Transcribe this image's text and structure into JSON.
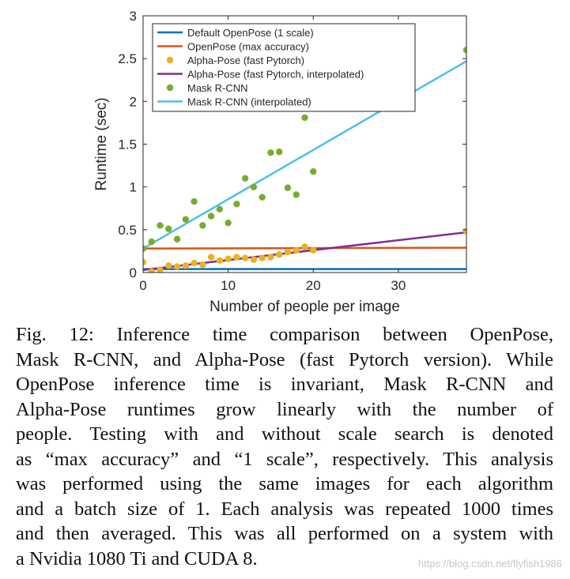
{
  "chart_data": {
    "type": "line",
    "title": "",
    "xlabel": "Number of people per image",
    "ylabel": "Runtime (sec)",
    "xlim": [
      0,
      38
    ],
    "ylim": [
      0,
      3
    ],
    "xticks": [
      0,
      10,
      20,
      30
    ],
    "yticks": [
      0,
      0.5,
      1,
      1.5,
      2,
      2.5,
      3
    ],
    "ytick_labels": [
      "0",
      "0.5",
      "1",
      "1.5",
      "2",
      "2.5",
      "3"
    ],
    "legend_position": "top",
    "series": [
      {
        "name": "Default OpenPose (1 scale)",
        "kind": "line",
        "color": "#0072bd",
        "x": [
          0,
          38
        ],
        "y": [
          0.04,
          0.04
        ]
      },
      {
        "name": "OpenPose (max accuracy)",
        "kind": "line",
        "color": "#d95319",
        "x": [
          0,
          38
        ],
        "y": [
          0.28,
          0.29
        ]
      },
      {
        "name": "Alpha-Pose (fast Pytorch)",
        "kind": "scatter",
        "color": "#edb120",
        "x": [
          0,
          1,
          2,
          3,
          4,
          5,
          6,
          7,
          8,
          9,
          10,
          11,
          12,
          13,
          14,
          15,
          16,
          17,
          18,
          19,
          20,
          38
        ],
        "y": [
          0.12,
          0.01,
          0.03,
          0.08,
          0.07,
          0.08,
          0.11,
          0.09,
          0.18,
          0.14,
          0.16,
          0.18,
          0.17,
          0.15,
          0.17,
          0.18,
          0.21,
          0.24,
          0.26,
          0.3,
          0.26,
          0.48
        ]
      },
      {
        "name": "Alpha-Pose (fast Pytorch, interpolated)",
        "kind": "line",
        "color": "#7e2f8e",
        "x": [
          0,
          38
        ],
        "y": [
          0.03,
          0.47
        ]
      },
      {
        "name": "Mask R-CNN",
        "kind": "scatter",
        "color": "#77ac30",
        "x": [
          0,
          1,
          2,
          3,
          4,
          5,
          6,
          7,
          8,
          9,
          10,
          11,
          12,
          13,
          14,
          15,
          16,
          17,
          18,
          19,
          20,
          38
        ],
        "y": [
          0.28,
          0.36,
          0.55,
          0.51,
          0.39,
          0.62,
          0.83,
          0.55,
          0.66,
          0.74,
          0.58,
          0.8,
          1.1,
          1.0,
          0.88,
          1.4,
          1.41,
          0.99,
          0.91,
          1.81,
          1.18,
          2.6
        ]
      },
      {
        "name": "Mask R-CNN (interpolated)",
        "kind": "line",
        "color": "#4dbeee",
        "x": [
          0,
          38
        ],
        "y": [
          0.28,
          2.47
        ]
      }
    ]
  },
  "caption": {
    "lines": [
      "Fig. 12: Inference time comparison between OpenPose,",
      "Mask R-CNN, and Alpha-Pose (fast Pytorch version). While",
      "OpenPose inference time is invariant, Mask R-CNN and",
      "Alpha-Pose runtimes grow linearly with the number of",
      "people. Testing with and without scale search is denoted",
      "as “max accuracy” and “1 scale”, respectively. This analysis",
      "was performed using the same images for each algorithm",
      "and a batch size of 1. Each analysis was repeated 1000 times",
      "and then averaged. This was all performed on a system with",
      "a Nvidia 1080 Ti and CUDA 8."
    ]
  },
  "watermark": "https://blog.csdn.net/flyfish1986"
}
